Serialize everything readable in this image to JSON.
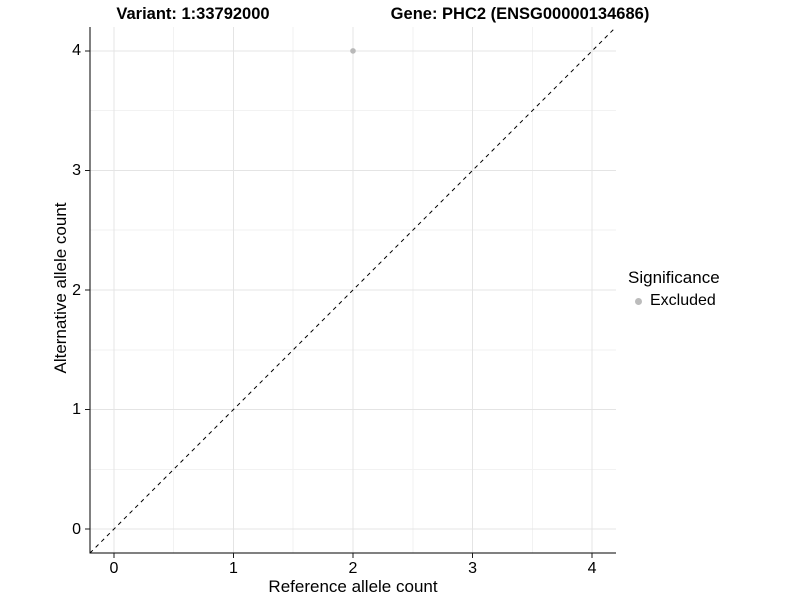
{
  "chart_data": {
    "type": "scatter",
    "title_left": "Variant: 1:33792000",
    "title_right": "Gene: PHC2 (ENSG00000134686)",
    "xlabel": "Reference allele count",
    "ylabel": "Alternative allele count",
    "xlim": [
      -0.2,
      4.2
    ],
    "ylim": [
      -0.2,
      4.2
    ],
    "x_ticks": [
      0,
      1,
      2,
      3,
      4
    ],
    "y_ticks": [
      0,
      1,
      2,
      3,
      4
    ],
    "x_minor": [
      0.5,
      1.5,
      2.5,
      3.5
    ],
    "y_minor": [
      0.5,
      1.5,
      2.5,
      3.5
    ],
    "grid": true,
    "points": [
      {
        "x": 2,
        "y": 4,
        "significance": "Excluded"
      }
    ],
    "identity_line": {
      "style": "dashed",
      "x1": -0.2,
      "y1": -0.2,
      "x2": 4.2,
      "y2": 4.2
    },
    "legend": {
      "title": "Significance",
      "position": "right",
      "items": [
        {
          "label": "Excluded",
          "color": "#bcbcbc"
        }
      ]
    },
    "colors": {
      "background": "#ffffff",
      "grid_major": "#e4e4e4",
      "grid_minor": "#f2f2f2",
      "axis_line": "#000000",
      "tick_mark": "#1a1a1a",
      "text": "#000000",
      "point": "#b9b9b9",
      "dashed_line": "#000000"
    }
  }
}
